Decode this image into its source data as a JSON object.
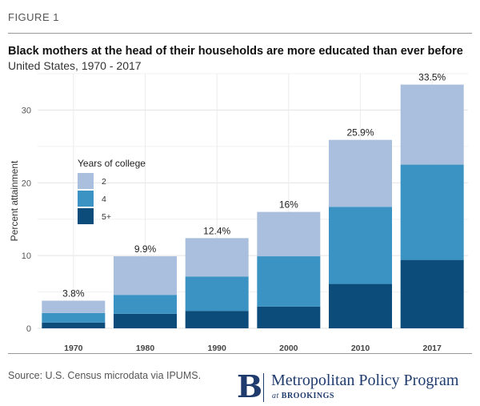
{
  "figure_label": "FIGURE 1",
  "source": "Source: U.S. Census microdata via IPUMS.",
  "logo": {
    "mark": "B",
    "name": "Metropolitan Policy Program",
    "sub_prefix": "at ",
    "sub_org": "BROOKINGS"
  },
  "chart_data": {
    "type": "bar",
    "stacked": true,
    "title": "Black mothers at the head of their households are more educated than ever before",
    "subtitle": "United States, 1970 - 2017",
    "xlabel": "",
    "ylabel": "Percent attainment",
    "ylim": [
      0,
      35
    ],
    "yticks": [
      0,
      10,
      20,
      30
    ],
    "categories": [
      "1970",
      "1980",
      "1990",
      "2000",
      "2010",
      "2017"
    ],
    "series": [
      {
        "name": "5+",
        "color": "#0c4c7a",
        "values": [
          0.8,
          2.0,
          2.4,
          3.0,
          6.1,
          9.4
        ]
      },
      {
        "name": "4",
        "color": "#3a93c3",
        "values": [
          1.3,
          2.6,
          4.7,
          6.9,
          10.6,
          13.1
        ]
      },
      {
        "name": "2",
        "color": "#a9bfdd",
        "values": [
          1.7,
          5.3,
          5.3,
          6.1,
          9.2,
          11.0
        ]
      }
    ],
    "totals": [
      "3.8%",
      "9.9%",
      "12.4%",
      "16%",
      "25.9%",
      "33.5%"
    ],
    "legend": {
      "title": "Years of college",
      "position": "top-left",
      "order": [
        "2",
        "4",
        "5+"
      ]
    }
  }
}
